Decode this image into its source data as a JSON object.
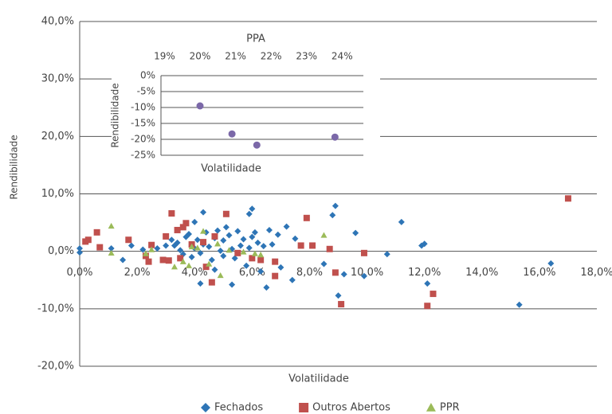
{
  "chart_data": [
    {
      "type": "scatter",
      "xlabel": "Volatilidade",
      "ylabel": "Rendibilidade",
      "xlim": [
        0,
        18
      ],
      "ylim": [
        -20,
        40
      ],
      "xticks": [
        {
          "value": 0,
          "label": "0,0%"
        },
        {
          "value": 2,
          "label": "2,0%"
        },
        {
          "value": 4,
          "label": "4,0%"
        },
        {
          "value": 6,
          "label": "6,0%"
        },
        {
          "value": 8,
          "label": "8,0%"
        },
        {
          "value": 10,
          "label": "10,0%"
        },
        {
          "value": 12,
          "label": "12,0%"
        },
        {
          "value": 14,
          "label": "14,0%"
        },
        {
          "value": 16,
          "label": "16,0%"
        },
        {
          "value": 18,
          "label": "18,0%"
        }
      ],
      "yticks": [
        {
          "value": -20,
          "label": "-20,0%"
        },
        {
          "value": -10,
          "label": "-10,0%"
        },
        {
          "value": 0,
          "label": "0,0%"
        },
        {
          "value": 10,
          "label": "10,0%"
        },
        {
          "value": 20,
          "label": "20,0%"
        },
        {
          "value": 30,
          "label": "30,0%"
        },
        {
          "value": 40,
          "label": "40,0%"
        }
      ],
      "grid": true,
      "legend": "bottom",
      "series": [
        {
          "name": "Fechados",
          "color": "#2e75b6",
          "marker": "diamond",
          "x": [
            0,
            0,
            1.1,
            1.5,
            9.6,
            10.7,
            11.2,
            11.9,
            12.0,
            12.1,
            15.3,
            16.4,
            8.8,
            8.9,
            9.0,
            9.2,
            9.9,
            8.5,
            7.4,
            6.5,
            6.0,
            5.9,
            4.3,
            3.3,
            4.0,
            3.0,
            3.2,
            3.4,
            3.5,
            3.6,
            3.7,
            3.8,
            3.9,
            4.0,
            4.1,
            4.2,
            4.3,
            4.4,
            4.5,
            4.6,
            4.7,
            4.8,
            4.9,
            5.0,
            5.0,
            5.1,
            5.2,
            5.3,
            5.4,
            5.5,
            5.6,
            5.7,
            5.8,
            5.9,
            6.0,
            6.1,
            6.2,
            6.3,
            6.4,
            6.6,
            6.7,
            6.9,
            7.0,
            7.2,
            7.5,
            2.7,
            2.2,
            1.8,
            4.7,
            5.3,
            4.2
          ],
          "values": [
            0.5,
            -0.2,
            0.5,
            -1.5,
            3.2,
            -0.5,
            5.1,
            1.0,
            1.3,
            -5.6,
            -9.3,
            -2.1,
            6.3,
            7.9,
            -7.7,
            -4.0,
            -4.3,
            -2.2,
            -5.0,
            -6.3,
            7.4,
            6.5,
            6.8,
            1.0,
            5.1,
            1.0,
            2.0,
            1.5,
            0.2,
            -0.5,
            2.5,
            3.0,
            -1.0,
            0.5,
            2.0,
            -0.3,
            1.2,
            3.3,
            0.8,
            -1.5,
            2.3,
            3.6,
            0.1,
            1.9,
            -0.8,
            4.2,
            2.8,
            0.4,
            -1.2,
            3.5,
            1.0,
            2.1,
            -2.5,
            0.6,
            2.5,
            3.3,
            1.5,
            -3.5,
            0.9,
            3.7,
            1.2,
            2.9,
            -2.8,
            4.3,
            2.2,
            0.5,
            0.3,
            1.0,
            -3.2,
            -5.8,
            -5.6
          ]
        },
        {
          "name": "Outros Abertos",
          "color": "#c0504d",
          "marker": "square",
          "x": [
            0.2,
            0.3,
            0.6,
            0.7,
            1.7,
            2.3,
            2.4,
            2.5,
            2.9,
            3.0,
            3.1,
            3.2,
            3.4,
            3.5,
            3.6,
            3.7,
            3.9,
            4.3,
            4.4,
            4.6,
            4.7,
            5.1,
            5.5,
            6.0,
            6.3,
            6.8,
            6.8,
            7.7,
            7.9,
            8.1,
            8.7,
            8.9,
            9.1,
            9.9,
            12.1,
            12.3,
            17.0
          ],
          "values": [
            1.7,
            2.0,
            3.3,
            0.7,
            2.0,
            -0.8,
            -1.8,
            1.1,
            -1.5,
            2.6,
            -1.6,
            6.6,
            3.7,
            -1.2,
            4.2,
            4.9,
            1.2,
            1.6,
            -2.7,
            -5.4,
            2.6,
            6.5,
            -0.3,
            -1.2,
            -1.5,
            -4.3,
            -1.8,
            1.0,
            5.8,
            1.0,
            0.4,
            -3.7,
            -9.2,
            -0.3,
            -9.5,
            -7.4,
            9.2
          ]
        },
        {
          "name": "PPR",
          "color": "#9bbb59",
          "marker": "triangle",
          "x": [
            1.1,
            1.1,
            2.3,
            2.5,
            3.3,
            3.6,
            3.8,
            4.1,
            4.3,
            4.5,
            4.9,
            5.2,
            5.7,
            6.1,
            6.3,
            8.5,
            3.9,
            4.8
          ],
          "values": [
            4.4,
            -0.3,
            -0.4,
            0.3,
            -2.7,
            -1.8,
            -2.5,
            0.6,
            3.5,
            -2.2,
            -4.2,
            0.2,
            -0.1,
            -0.4,
            -0.6,
            2.8,
            0.8,
            1.3
          ]
        }
      ]
    },
    {
      "type": "scatter",
      "title": "PPA",
      "xlabel": "Volatilidade",
      "ylabel": "Rendibilidade",
      "xaxis_position": "top",
      "color": "#7b68a8",
      "marker": "circle",
      "xlim": [
        18.9,
        24.6
      ],
      "ylim": [
        -25,
        0
      ],
      "xticks": [
        {
          "value": 19,
          "label": "19%"
        },
        {
          "value": 20,
          "label": "20%"
        },
        {
          "value": 21,
          "label": "21%"
        },
        {
          "value": 22,
          "label": "22%"
        },
        {
          "value": 23,
          "label": "23%"
        },
        {
          "value": 24,
          "label": "24%"
        }
      ],
      "yticks": [
        {
          "value": 0,
          "label": "0%"
        },
        {
          "value": -5,
          "label": "-5%"
        },
        {
          "value": -10,
          "label": "-10%"
        },
        {
          "value": -15,
          "label": "-15%"
        },
        {
          "value": -20,
          "label": "-20%"
        },
        {
          "value": -25,
          "label": "-25%"
        }
      ],
      "grid": true,
      "x": [
        20.0,
        20.9,
        21.6,
        23.8
      ],
      "values": [
        -9.5,
        -18.3,
        -21.8,
        -19.3
      ]
    }
  ]
}
